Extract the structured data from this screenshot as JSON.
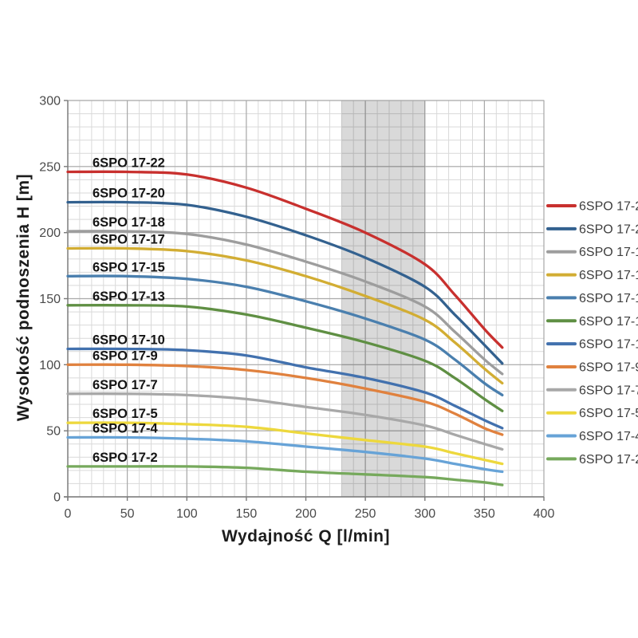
{
  "chart_data": {
    "type": "line",
    "title": "",
    "xlabel": "Wydajność Q [l/min]",
    "ylabel": "Wysokość podnoszenia H [m]",
    "xlim": [
      0,
      400
    ],
    "ylim": [
      0,
      300
    ],
    "x_ticks": [
      0,
      50,
      100,
      150,
      200,
      250,
      300,
      350,
      400
    ],
    "y_ticks": [
      0,
      50,
      100,
      150,
      200,
      250,
      300
    ],
    "minor_grid_step_x": 10,
    "minor_grid_step_y": 10,
    "grid": "on",
    "legend_position": "right",
    "inline_labels": true,
    "band": {
      "x_from": 230,
      "x_to": 300,
      "fill": "rgba(0,0,0,0.15)"
    },
    "x": [
      0,
      50,
      100,
      150,
      200,
      250,
      300,
      325,
      350,
      365
    ],
    "series": [
      {
        "name": "6SPO 17-22",
        "color": "#c8302e",
        "values": [
          246,
          246,
          244,
          234,
          218,
          200,
          176,
          153,
          127,
          113
        ]
      },
      {
        "name": "6SPO 17-20",
        "color": "#33618f",
        "values": [
          223,
          223,
          221,
          212,
          198,
          181,
          159,
          138,
          115,
          101
        ]
      },
      {
        "name": "6SPO 17-18",
        "color": "#9d9d9d",
        "values": [
          201,
          201,
          199,
          191,
          178,
          163,
          144,
          125,
          104,
          93
        ]
      },
      {
        "name": "6SPO 17-17",
        "color": "#d2ad33",
        "values": [
          188,
          188,
          186,
          179,
          167,
          152,
          134,
          117,
          97,
          86
        ]
      },
      {
        "name": "6SPO 17-15",
        "color": "#4a7fae",
        "values": [
          167,
          167,
          165,
          159,
          148,
          135,
          119,
          104,
          86,
          77
        ]
      },
      {
        "name": "6SPO 17-13",
        "color": "#5f8f43",
        "values": [
          145,
          145,
          144,
          138,
          128,
          117,
          103,
          90,
          74,
          65
        ]
      },
      {
        "name": "6SPO 17-10",
        "color": "#4271ae",
        "values": [
          112,
          112,
          111,
          107,
          98,
          90,
          79,
          69,
          58,
          52
        ]
      },
      {
        "name": "6SPO 17-9",
        "color": "#e0813e",
        "values": [
          100,
          100,
          99,
          96,
          90,
          82,
          72,
          63,
          52,
          47
        ]
      },
      {
        "name": "6SPO 17-7",
        "color": "#a8a8a8",
        "values": [
          78,
          78,
          77,
          74,
          68,
          62,
          54,
          47,
          40,
          36
        ]
      },
      {
        "name": "6SPO 17-5",
        "color": "#edd83d",
        "values": [
          56,
          56,
          55,
          53,
          48,
          43,
          38,
          33,
          28,
          25
        ]
      },
      {
        "name": "6SPO 17-4",
        "color": "#67a3d7",
        "values": [
          45,
          45,
          44,
          42,
          38,
          34,
          29,
          25,
          21,
          19
        ]
      },
      {
        "name": "6SPO 17-2",
        "color": "#76a95c",
        "values": [
          23,
          23,
          23,
          22,
          19,
          17,
          15,
          13,
          11,
          9
        ]
      }
    ],
    "style": {
      "minor_grid_color": "#d9d9d9",
      "major_grid_color": "#a9a9a9",
      "frame_color": "#a6a6a6",
      "axis_color": "#7a7a7a",
      "tick_label_color": "#4a4a4a",
      "inline_label_color": "#141414",
      "legend_text_color": "#3d3d3d"
    }
  }
}
